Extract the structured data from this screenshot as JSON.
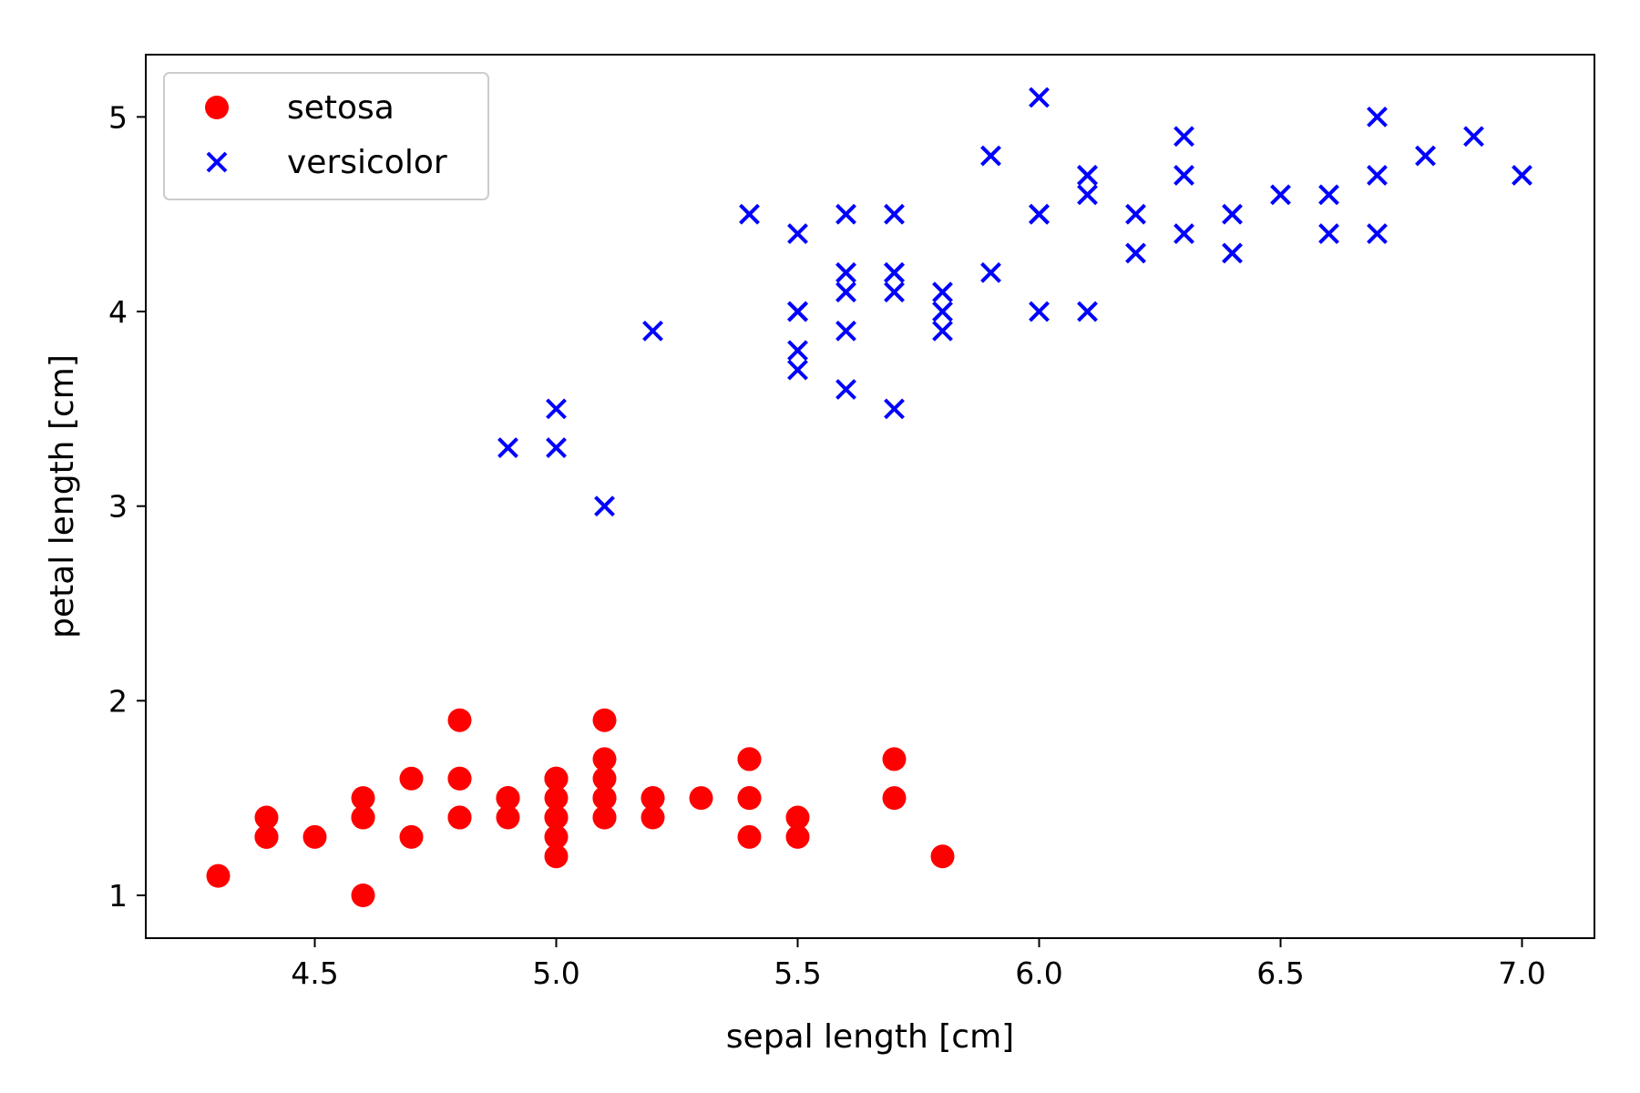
{
  "chart_data": {
    "type": "scatter",
    "title": "",
    "xlabel": "sepal length [cm]",
    "ylabel": "petal length [cm]",
    "xlim": [
      4.15,
      7.15
    ],
    "ylim": [
      0.78,
      5.32
    ],
    "xticks": [
      4.5,
      5.0,
      5.5,
      6.0,
      6.5,
      7.0
    ],
    "xtick_labels": [
      "4.5",
      "5.0",
      "5.5",
      "6.0",
      "6.5",
      "7.0"
    ],
    "yticks": [
      1,
      2,
      3,
      4,
      5
    ],
    "ytick_labels": [
      "1",
      "2",
      "3",
      "4",
      "5"
    ],
    "grid": false,
    "legend_position": "top-left",
    "series": [
      {
        "name": "setosa",
        "marker": "circle",
        "color": "#ff0000",
        "points": [
          [
            5.1,
            1.4
          ],
          [
            4.9,
            1.4
          ],
          [
            4.7,
            1.3
          ],
          [
            4.6,
            1.5
          ],
          [
            5.0,
            1.4
          ],
          [
            5.4,
            1.7
          ],
          [
            4.6,
            1.4
          ],
          [
            5.0,
            1.5
          ],
          [
            4.4,
            1.4
          ],
          [
            4.9,
            1.5
          ],
          [
            5.4,
            1.5
          ],
          [
            4.8,
            1.6
          ],
          [
            4.8,
            1.4
          ],
          [
            4.3,
            1.1
          ],
          [
            5.8,
            1.2
          ],
          [
            5.7,
            1.5
          ],
          [
            5.4,
            1.3
          ],
          [
            5.1,
            1.4
          ],
          [
            5.7,
            1.7
          ],
          [
            5.1,
            1.5
          ],
          [
            5.4,
            1.7
          ],
          [
            5.1,
            1.5
          ],
          [
            4.6,
            1.0
          ],
          [
            5.1,
            1.7
          ],
          [
            4.8,
            1.9
          ],
          [
            5.0,
            1.6
          ],
          [
            5.0,
            1.6
          ],
          [
            5.2,
            1.5
          ],
          [
            5.2,
            1.4
          ],
          [
            4.7,
            1.6
          ],
          [
            4.8,
            1.6
          ],
          [
            5.4,
            1.5
          ],
          [
            5.2,
            1.5
          ],
          [
            5.5,
            1.4
          ],
          [
            4.9,
            1.5
          ],
          [
            5.0,
            1.2
          ],
          [
            5.5,
            1.3
          ],
          [
            4.9,
            1.5
          ],
          [
            4.4,
            1.3
          ],
          [
            5.1,
            1.5
          ],
          [
            5.0,
            1.3
          ],
          [
            4.5,
            1.3
          ],
          [
            4.4,
            1.3
          ],
          [
            5.0,
            1.6
          ],
          [
            5.1,
            1.9
          ],
          [
            4.8,
            1.4
          ],
          [
            5.1,
            1.6
          ],
          [
            4.6,
            1.4
          ],
          [
            5.3,
            1.5
          ],
          [
            5.0,
            1.4
          ]
        ]
      },
      {
        "name": "versicolor",
        "marker": "x",
        "color": "#0000ff",
        "points": [
          [
            7.0,
            4.7
          ],
          [
            6.4,
            4.5
          ],
          [
            6.9,
            4.9
          ],
          [
            5.5,
            4.0
          ],
          [
            6.5,
            4.6
          ],
          [
            5.7,
            4.5
          ],
          [
            6.3,
            4.7
          ],
          [
            4.9,
            3.3
          ],
          [
            6.6,
            4.6
          ],
          [
            5.2,
            3.9
          ],
          [
            5.0,
            3.5
          ],
          [
            5.9,
            4.2
          ],
          [
            6.0,
            4.0
          ],
          [
            6.1,
            4.7
          ],
          [
            5.6,
            3.6
          ],
          [
            6.7,
            4.4
          ],
          [
            5.6,
            4.5
          ],
          [
            5.8,
            4.1
          ],
          [
            6.2,
            4.5
          ],
          [
            5.6,
            3.9
          ],
          [
            5.9,
            4.8
          ],
          [
            6.1,
            4.0
          ],
          [
            6.3,
            4.9
          ],
          [
            6.1,
            4.7
          ],
          [
            6.4,
            4.3
          ],
          [
            6.6,
            4.4
          ],
          [
            6.8,
            4.8
          ],
          [
            6.7,
            5.0
          ],
          [
            6.0,
            4.5
          ],
          [
            5.7,
            3.5
          ],
          [
            5.5,
            3.8
          ],
          [
            5.5,
            3.7
          ],
          [
            5.8,
            3.9
          ],
          [
            6.0,
            5.1
          ],
          [
            5.4,
            4.5
          ],
          [
            6.0,
            4.5
          ],
          [
            6.7,
            4.7
          ],
          [
            6.3,
            4.4
          ],
          [
            5.6,
            4.1
          ],
          [
            5.5,
            4.0
          ],
          [
            5.5,
            4.4
          ],
          [
            6.1,
            4.6
          ],
          [
            5.8,
            4.0
          ],
          [
            5.0,
            3.3
          ],
          [
            5.6,
            4.2
          ],
          [
            5.7,
            4.2
          ],
          [
            5.7,
            4.2
          ],
          [
            6.2,
            4.3
          ],
          [
            5.1,
            3.0
          ],
          [
            5.7,
            4.1
          ]
        ]
      }
    ]
  }
}
